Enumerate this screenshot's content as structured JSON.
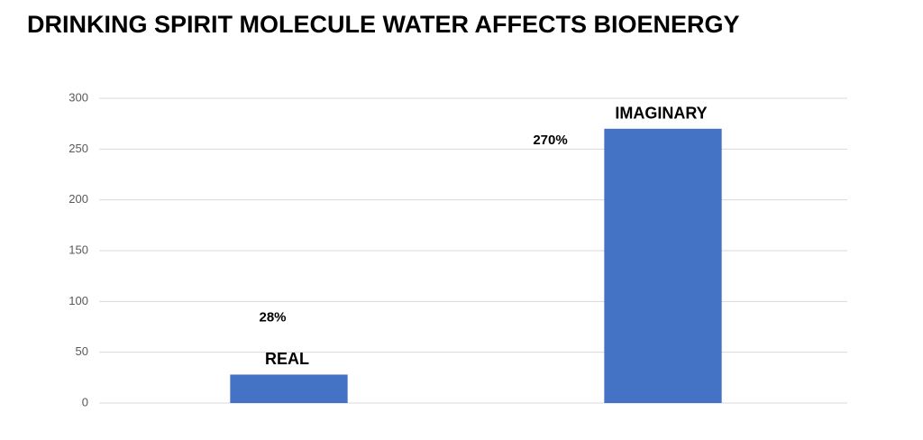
{
  "chart_data": {
    "type": "bar",
    "title": "DRINKING SPIRIT MOLECULE WATER AFFECTS BIOENERGY",
    "categories": [
      "REAL",
      "IMAGINARY"
    ],
    "values": [
      28,
      270
    ],
    "value_labels": [
      "28%",
      "270%"
    ],
    "color": "#4472c4",
    "ylim": [
      0,
      300
    ],
    "yticks": [
      0,
      50,
      100,
      150,
      200,
      250,
      300
    ],
    "grid": true
  }
}
